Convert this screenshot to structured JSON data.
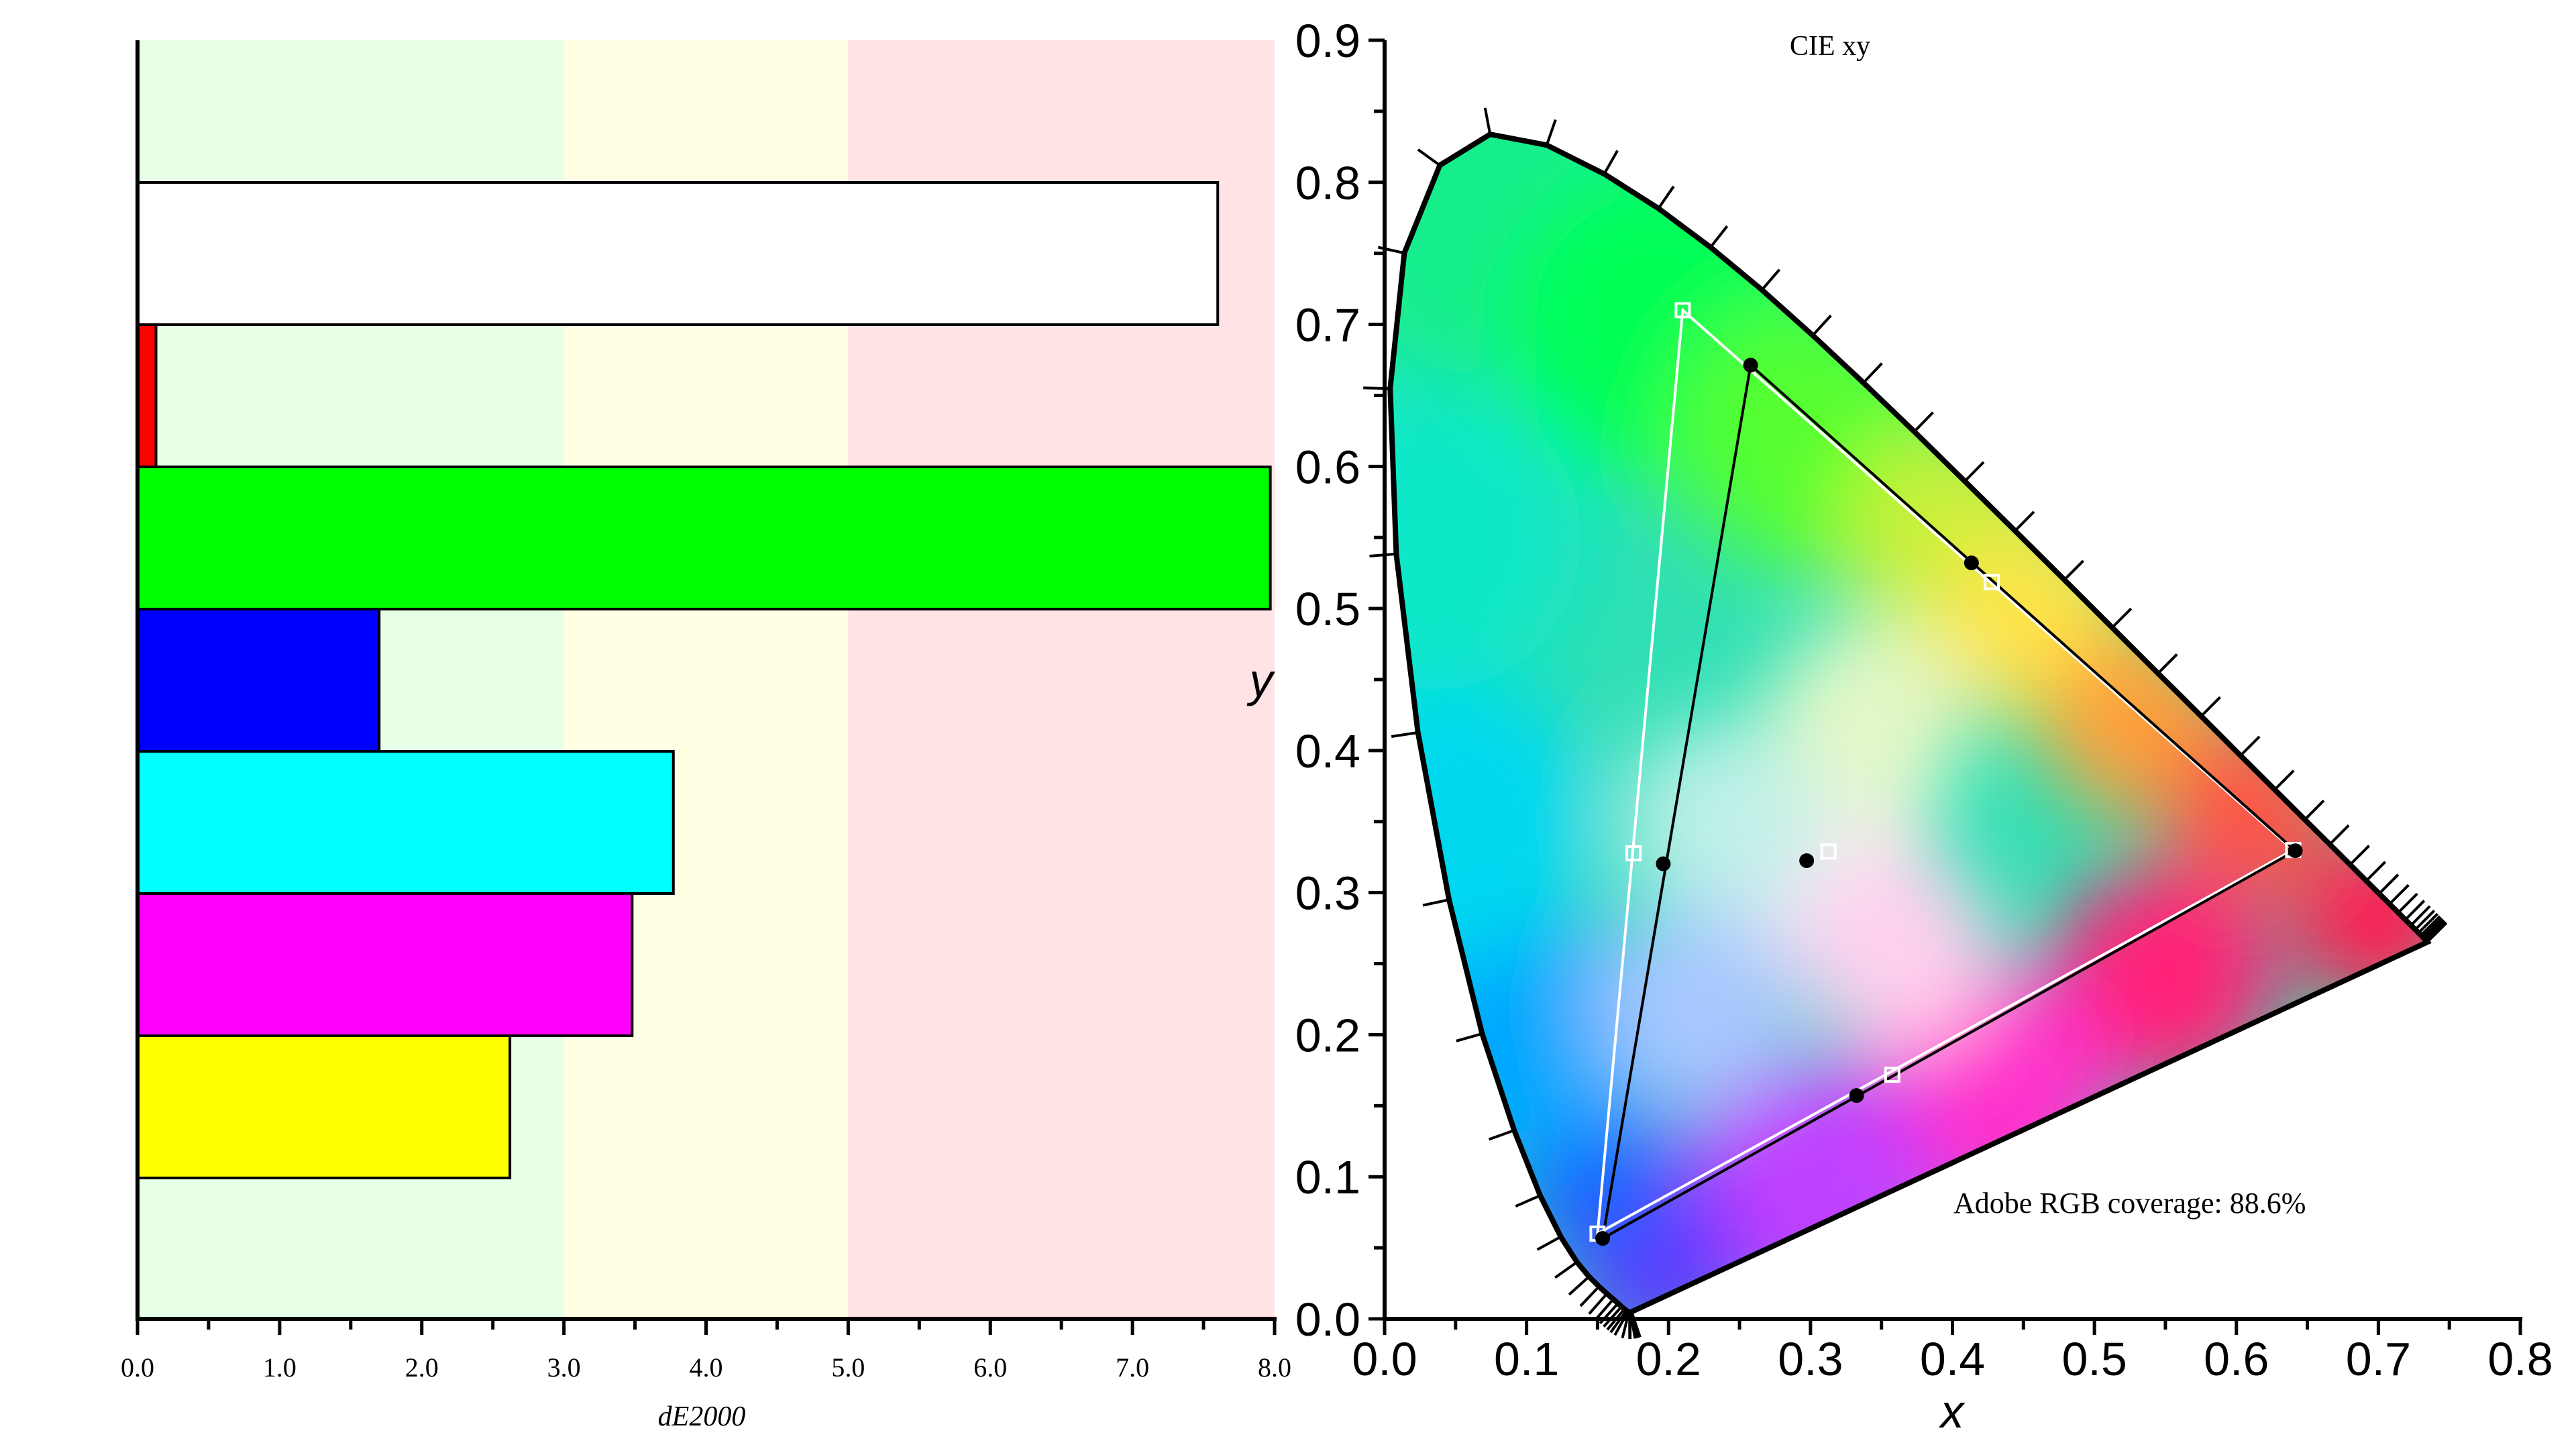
{
  "chart_data": [
    {
      "type": "bar",
      "orientation": "horizontal",
      "xlabel": "dE2000",
      "xlim": [
        0.0,
        8.0
      ],
      "x_tick_labels": [
        "0.0",
        "1.0",
        "2.0",
        "3.0",
        "4.0",
        "5.0",
        "6.0",
        "7.0",
        "8.0"
      ],
      "background_zones": [
        {
          "from": 0.0,
          "to": 3.0,
          "color": "#e6ffe6"
        },
        {
          "from": 3.0,
          "to": 5.0,
          "color": "#ffffe3"
        },
        {
          "from": 5.0,
          "to": 8.0,
          "color": "#ffe3e5"
        }
      ],
      "bars": [
        {
          "value": 7.6,
          "color": "#ffffff"
        },
        {
          "value": 0.13,
          "color": "#ff0000"
        },
        {
          "value": 7.97,
          "color": "#00ff00"
        },
        {
          "value": 1.7,
          "color": "#0000ff"
        },
        {
          "value": 3.77,
          "color": "#00ffff"
        },
        {
          "value": 3.48,
          "color": "#ff00ff"
        },
        {
          "value": 2.62,
          "color": "#ffff00"
        }
      ]
    },
    {
      "type": "scatter",
      "subtype": "cie-xy-chromaticity",
      "title": "CIE xy",
      "xlabel": "x",
      "ylabel": "y",
      "xlim": [
        0.0,
        0.8
      ],
      "ylim": [
        0.0,
        0.9
      ],
      "x_tick_labels": [
        "0.0",
        "0.1",
        "0.2",
        "0.3",
        "0.4",
        "0.5",
        "0.6",
        "0.7",
        "0.8"
      ],
      "y_tick_labels": [
        "0.0",
        "0.1",
        "0.2",
        "0.3",
        "0.4",
        "0.5",
        "0.6",
        "0.7",
        "0.8",
        "0.9"
      ],
      "annotation": "Adobe RGB coverage: 88.6%",
      "spectral_locus": [
        [
          0.1741,
          0.005
        ],
        [
          0.174,
          0.005
        ],
        [
          0.1738,
          0.0049
        ],
        [
          0.1736,
          0.0049
        ],
        [
          0.1733,
          0.0048
        ],
        [
          0.173,
          0.0048
        ],
        [
          0.1726,
          0.0048
        ],
        [
          0.1721,
          0.0048
        ],
        [
          0.1714,
          0.0051
        ],
        [
          0.1703,
          0.0058
        ],
        [
          0.1689,
          0.0069
        ],
        [
          0.1669,
          0.0086
        ],
        [
          0.1644,
          0.0109
        ],
        [
          0.1611,
          0.0138
        ],
        [
          0.1566,
          0.0177
        ],
        [
          0.151,
          0.0227
        ],
        [
          0.144,
          0.0297
        ],
        [
          0.1355,
          0.0399
        ],
        [
          0.1241,
          0.0578
        ],
        [
          0.1096,
          0.0868
        ],
        [
          0.0913,
          0.1327
        ],
        [
          0.0687,
          0.2007
        ],
        [
          0.0454,
          0.295
        ],
        [
          0.0235,
          0.4127
        ],
        [
          0.0082,
          0.5384
        ],
        [
          0.0039,
          0.6548
        ],
        [
          0.0139,
          0.7502
        ],
        [
          0.0389,
          0.812
        ],
        [
          0.0743,
          0.8338
        ],
        [
          0.1142,
          0.8262
        ],
        [
          0.1547,
          0.8059
        ],
        [
          0.1929,
          0.7816
        ],
        [
          0.2296,
          0.7543
        ],
        [
          0.2658,
          0.7243
        ],
        [
          0.3016,
          0.6923
        ],
        [
          0.3373,
          0.6589
        ],
        [
          0.3731,
          0.6245
        ],
        [
          0.4087,
          0.5896
        ],
        [
          0.4441,
          0.5547
        ],
        [
          0.4788,
          0.5202
        ],
        [
          0.5125,
          0.4866
        ],
        [
          0.5448,
          0.4544
        ],
        [
          0.5752,
          0.4242
        ],
        [
          0.6029,
          0.3965
        ],
        [
          0.627,
          0.3725
        ],
        [
          0.6482,
          0.3514
        ],
        [
          0.6658,
          0.334
        ],
        [
          0.6801,
          0.3197
        ],
        [
          0.6915,
          0.3083
        ],
        [
          0.7006,
          0.2993
        ],
        [
          0.7079,
          0.292
        ],
        [
          0.714,
          0.2859
        ],
        [
          0.719,
          0.2809
        ],
        [
          0.723,
          0.277
        ],
        [
          0.726,
          0.274
        ],
        [
          0.7283,
          0.2717
        ],
        [
          0.73,
          0.27
        ],
        [
          0.7311,
          0.2689
        ],
        [
          0.732,
          0.268
        ],
        [
          0.7327,
          0.2673
        ],
        [
          0.7334,
          0.2666
        ],
        [
          0.734,
          0.266
        ],
        [
          0.7344,
          0.2656
        ],
        [
          0.7346,
          0.2654
        ],
        [
          0.7347,
          0.2653
        ]
      ],
      "series": [
        {
          "marker": "square-open",
          "color": "#ffffff",
          "triangle": [
            [
              0.21,
              0.71
            ],
            [
              0.15,
              0.06
            ],
            [
              0.64,
              0.33
            ]
          ],
          "points": [
            [
              0.21,
              0.71
            ],
            [
              0.15,
              0.06
            ],
            [
              0.64,
              0.33
            ],
            [
              0.1754,
              0.3277
            ],
            [
              0.3576,
              0.1718
            ],
            [
              0.4277,
              0.5186
            ],
            [
              0.3127,
              0.329
            ]
          ]
        },
        {
          "marker": "dot-filled",
          "color": "#000000",
          "triangle": [
            [
              0.2578,
              0.6713
            ],
            [
              0.1536,
              0.0566
            ],
            [
              0.6415,
              0.3295
            ]
          ],
          "points": [
            [
              0.2578,
              0.6713
            ],
            [
              0.1536,
              0.0566
            ],
            [
              0.6415,
              0.3295
            ],
            [
              0.1963,
              0.3203
            ],
            [
              0.3325,
              0.1572
            ],
            [
              0.4134,
              0.5321
            ],
            [
              0.2973,
              0.3225
            ]
          ]
        }
      ]
    }
  ]
}
